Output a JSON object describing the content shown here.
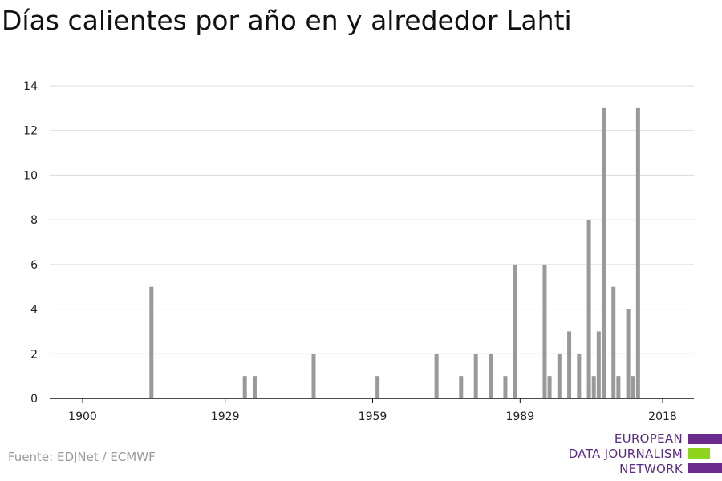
{
  "title": "Días calientes por año en y alrededor Lahti",
  "source": "Fuente: EDJNet / ECMWF",
  "logo": {
    "lines": [
      "EUROPEAN",
      "DATA JOURNALISM",
      "NETWORK"
    ],
    "colors": {
      "purple": "#6a2a8e",
      "green": "#8fd41d"
    }
  },
  "chart_data": {
    "type": "bar",
    "xlabel": "",
    "ylabel": "",
    "xlim": [
      1900,
      2018
    ],
    "ylim": [
      0,
      14
    ],
    "yticks": [
      0,
      2,
      4,
      6,
      8,
      10,
      12,
      14
    ],
    "xticks": [
      1900,
      1929,
      1959,
      1989,
      2018
    ],
    "grid": true,
    "bar_color": "#999999",
    "x": [
      1914,
      1933,
      1935,
      1947,
      1960,
      1972,
      1977,
      1980,
      1983,
      1986,
      1988,
      1994,
      1995,
      1997,
      1999,
      2001,
      2003,
      2004,
      2005,
      2006,
      2008,
      2009,
      2011,
      2012,
      2013,
      2016
    ],
    "values": [
      5,
      1,
      1,
      2,
      1,
      2,
      1,
      2,
      2,
      1,
      6,
      6,
      1,
      2,
      3,
      2,
      8,
      1,
      3,
      13,
      5,
      1,
      4,
      1,
      13,
      0
    ]
  }
}
